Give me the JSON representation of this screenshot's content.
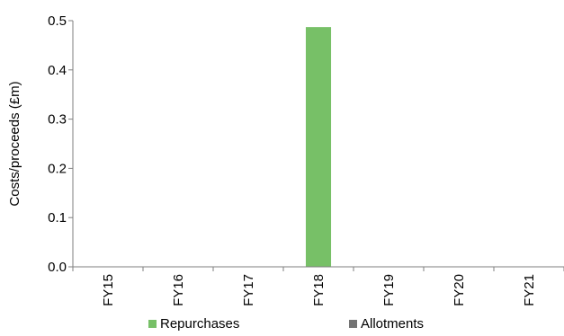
{
  "chart_data": {
    "type": "bar",
    "categories": [
      "FY15",
      "FY16",
      "FY17",
      "FY18",
      "FY19",
      "FY20",
      "FY21"
    ],
    "series": [
      {
        "name": "Repurchases",
        "values": [
          0,
          0,
          0,
          0.487,
          0,
          0,
          0
        ],
        "color": "#77c067"
      },
      {
        "name": "Allotments",
        "values": [
          0,
          0,
          0,
          0,
          0,
          0,
          0
        ],
        "color": "#737373"
      }
    ],
    "title": "",
    "xlabel": "",
    "ylabel": "Costs/proceeds (£m)",
    "ylim": [
      0,
      0.5
    ],
    "yticks": [
      "0.0",
      "0.1",
      "0.2",
      "0.3",
      "0.4",
      "0.5"
    ],
    "grid": false,
    "legend": "bottom",
    "stacked": true
  }
}
